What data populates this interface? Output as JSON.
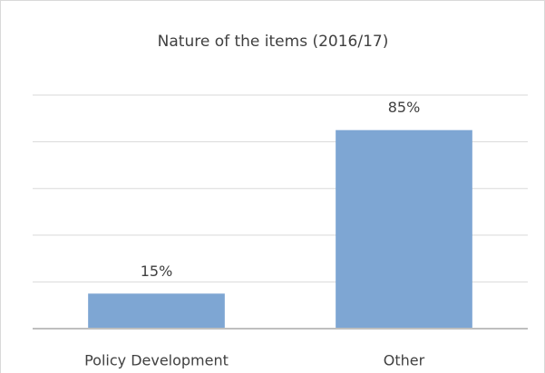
{
  "chart_data": {
    "type": "bar",
    "title": "Nature of the items (2016/17)",
    "categories": [
      "Policy Development",
      "Other"
    ],
    "values": [
      15,
      85
    ],
    "value_labels": [
      "15%",
      "85%"
    ],
    "color": "#7ea6d3",
    "ylim": [
      0,
      100
    ],
    "yticks": [
      0,
      20,
      40,
      60,
      80,
      100
    ],
    "grid": true
  }
}
